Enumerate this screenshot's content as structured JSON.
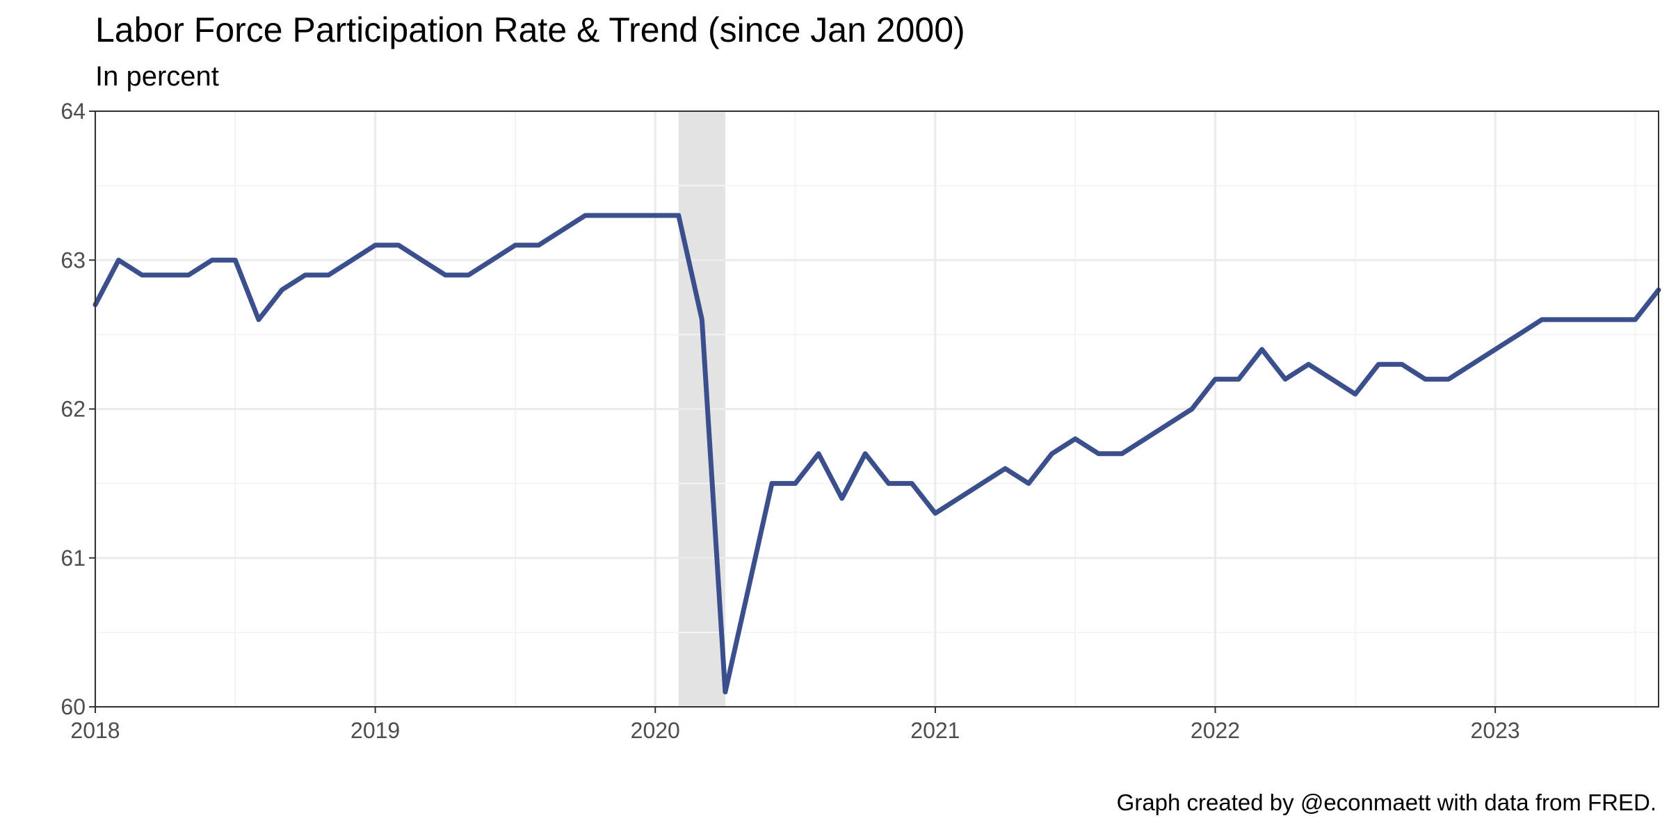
{
  "chart_data": {
    "type": "line",
    "title": "Labor Force Participation Rate & Trend (since Jan 2000)",
    "subtitle": "In percent",
    "caption": "Graph created by @econmaett with data from FRED.",
    "xlabel": "",
    "ylabel": "",
    "x_start": "2018-01",
    "x_end": "2023-08",
    "xlim": [
      "2018-01",
      "2023-08"
    ],
    "ylim": [
      60,
      64
    ],
    "x_ticks": [
      "2018",
      "2019",
      "2020",
      "2021",
      "2022",
      "2023"
    ],
    "y_ticks": [
      "60",
      "61",
      "62",
      "63",
      "64"
    ],
    "grid": true,
    "legend": "none",
    "colors": {
      "line": "#3b4f8c",
      "recession": "#e3e3e3",
      "grid_major": "#ebebeb",
      "grid_minor": "#f4f4f4",
      "axis": "#333333"
    },
    "recession_shading": {
      "start": "2020-02",
      "end": "2020-04"
    },
    "series": [
      {
        "dates": [
          "2018-01",
          "2018-02",
          "2018-03",
          "2018-04",
          "2018-05",
          "2018-06",
          "2018-07",
          "2018-08",
          "2018-09",
          "2018-10",
          "2018-11",
          "2018-12",
          "2019-01",
          "2019-02",
          "2019-03",
          "2019-04",
          "2019-05",
          "2019-06",
          "2019-07",
          "2019-08",
          "2019-09",
          "2019-10",
          "2019-11",
          "2019-12",
          "2020-01",
          "2020-02",
          "2020-03",
          "2020-04",
          "2020-05",
          "2020-06",
          "2020-07",
          "2020-08",
          "2020-09",
          "2020-10",
          "2020-11",
          "2020-12",
          "2021-01",
          "2021-02",
          "2021-03",
          "2021-04",
          "2021-05",
          "2021-06",
          "2021-07",
          "2021-08",
          "2021-09",
          "2021-10",
          "2021-11",
          "2021-12",
          "2022-01",
          "2022-02",
          "2022-03",
          "2022-04",
          "2022-05",
          "2022-06",
          "2022-07",
          "2022-08",
          "2022-09",
          "2022-10",
          "2022-11",
          "2022-12",
          "2023-01",
          "2023-02",
          "2023-03",
          "2023-04",
          "2023-05",
          "2023-06",
          "2023-07",
          "2023-08"
        ],
        "values": [
          62.7,
          63.0,
          62.9,
          62.9,
          62.9,
          63.0,
          63.0,
          62.6,
          62.8,
          62.9,
          62.9,
          63.0,
          63.1,
          63.1,
          63.0,
          62.9,
          62.9,
          63.0,
          63.1,
          63.1,
          63.2,
          63.3,
          63.3,
          63.3,
          63.3,
          63.3,
          62.6,
          60.1,
          60.8,
          61.5,
          61.5,
          61.7,
          61.4,
          61.7,
          61.5,
          61.5,
          61.3,
          61.4,
          61.5,
          61.6,
          61.5,
          61.7,
          61.8,
          61.7,
          61.7,
          61.8,
          61.9,
          62.0,
          62.2,
          62.2,
          62.4,
          62.2,
          62.3,
          62.2,
          62.1,
          62.3,
          62.3,
          62.2,
          62.2,
          62.3,
          62.4,
          62.5,
          62.6,
          62.6,
          62.6,
          62.6,
          62.6,
          62.8
        ]
      }
    ]
  }
}
